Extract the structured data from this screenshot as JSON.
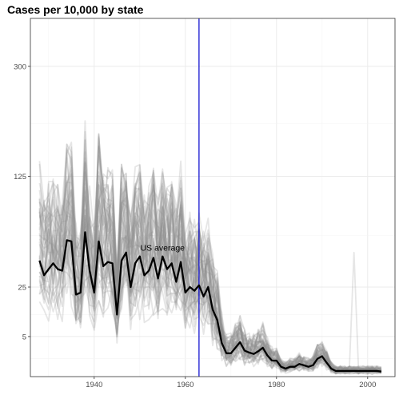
{
  "chart_data": {
    "type": "line",
    "title": "Cases per 10,000 by state",
    "xlabel": "",
    "ylabel": "",
    "xlim": [
      1926,
      2006
    ],
    "y_scale": "sqrt",
    "ylim": [
      0,
      400
    ],
    "x_ticks": [
      1940,
      1960,
      1980,
      2000
    ],
    "y_ticks": [
      5,
      25,
      125,
      300
    ],
    "grid": true,
    "legend": "none",
    "reference_line": {
      "x": 1963,
      "color": "#0000cc"
    },
    "annotation": {
      "text": "US average",
      "x": 1955,
      "y": 52
    },
    "state_series_count": 51,
    "state_series_color": "#8c8c8c",
    "series": [
      {
        "x": [
          1928,
          1929,
          1930,
          1931,
          1932,
          1933,
          1934,
          1935,
          1936,
          1937,
          1938,
          1939,
          1940,
          1941,
          1942,
          1943,
          1944,
          1945,
          1946,
          1947,
          1948,
          1949,
          1950,
          1951,
          1952,
          1953,
          1954,
          1955,
          1956,
          1957,
          1958,
          1959,
          1960,
          1961,
          1962,
          1963,
          1964,
          1965,
          1966,
          1967,
          1968,
          1969,
          1970,
          1971,
          1972,
          1973,
          1974,
          1975,
          1976,
          1977,
          1978,
          1979,
          1980,
          1981,
          1982,
          1983,
          1984,
          1985,
          1986,
          1987,
          1988,
          1989,
          1990,
          1991,
          1992,
          1993,
          1994,
          1995,
          1996,
          1997,
          1998,
          1999,
          2000,
          2001,
          2002,
          2003
        ],
        "values": [
          42,
          32,
          36,
          40,
          36,
          35,
          58,
          57,
          21,
          22,
          65,
          35,
          22,
          57,
          38,
          41,
          40,
          12,
          42,
          48,
          25,
          40,
          45,
          32,
          35,
          44,
          30,
          45,
          36,
          40,
          28,
          41,
          22,
          25,
          23,
          26,
          20,
          25,
          14,
          10,
          3.5,
          1.7,
          1.7,
          2.6,
          3.7,
          2.1,
          1.8,
          1.6,
          2.0,
          2.6,
          1.4,
          0.8,
          0.8,
          0.3,
          0.2,
          0.3,
          0.3,
          0.5,
          0.4,
          0.3,
          0.4,
          1.0,
          1.3,
          0.6,
          0.2,
          0.1,
          0.1,
          0.1,
          0.1,
          0.1,
          0.1,
          0.1,
          0.1,
          0.1,
          0.1,
          0.08
        ],
        "color": "#000000"
      }
    ]
  }
}
